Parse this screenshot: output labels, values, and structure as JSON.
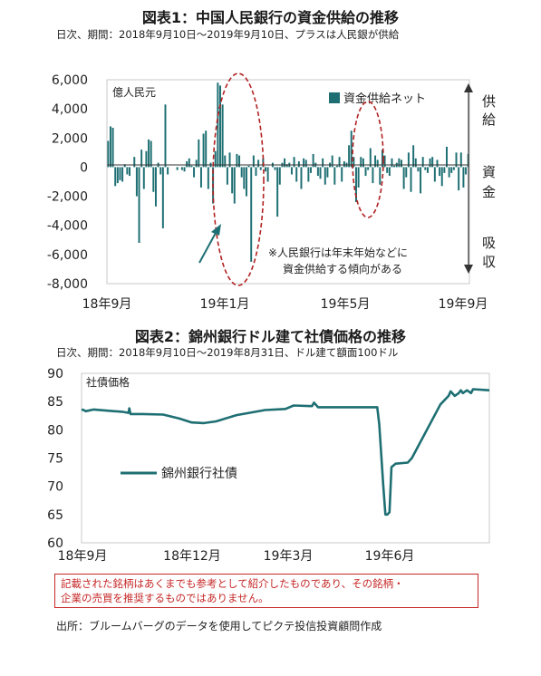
{
  "chart1": {
    "title": "図表1：中国人民銀行の資金供給の推移",
    "subtitle": "日次、期間：2018年9月10日～2019年9月10日、プラスは人民銀が供給",
    "unit_label": "億人民元",
    "legend": "資金供給ネット",
    "annotation": [
      "※人民銀行は年末年始などに",
      "資金供給する傾向がある"
    ],
    "side_label_supply": [
      "供",
      "給"
    ],
    "side_label_fund": [
      "資",
      "金"
    ],
    "side_label_absorb": [
      "吸",
      "収"
    ],
    "colors": {
      "bar": "#1e6f73",
      "highlight": "#b22222"
    }
  },
  "chart2": {
    "title": "図表2：錦州銀行ドル建て社債価格の推移",
    "subtitle": "日次、期間：2018年9月10日～2019年8月31日、ドル建て額面100ドル",
    "unit_label": "社債価格",
    "legend": "錦州銀行社債",
    "colors": {
      "line": "#1e6f73"
    }
  },
  "disclaimer": [
    "記載された銘柄はあくまでも参考として紹介したものであり、その銘柄・",
    "企業の売買を推奨するものではありません。"
  ],
  "source": "出所：ブルームバーグのデータを使用してピクテ投信投資顧問作成",
  "chart_data": [
    {
      "type": "bar",
      "title": "図表1：中国人民銀行の資金供給の推移",
      "ylabel": "億人民元",
      "ylim": [
        -8000,
        6000
      ],
      "yticks": [
        6000,
        4000,
        2000,
        0,
        -2000,
        -4000,
        -6000,
        -8000
      ],
      "xticks": [
        "18年9月",
        "19年1月",
        "19年5月",
        "19年9月"
      ],
      "series": [
        {
          "name": "資金供給ネット",
          "values": [
            1800,
            2800,
            2700,
            -1300,
            -1100,
            -900,
            -1000,
            200,
            -500,
            -600,
            0,
            700,
            -2000,
            -5200,
            1200,
            -1500,
            1100,
            1900,
            1800,
            -1700,
            -2700,
            300,
            -500,
            -4200,
            4300,
            -500,
            0,
            0,
            0,
            -200,
            0,
            -200,
            -300,
            400,
            600,
            100,
            -700,
            500,
            1900,
            -1400,
            2300,
            2500,
            -1500,
            300,
            -2500,
            1100,
            5800,
            5600,
            4300,
            800,
            -1200,
            1000,
            -1800,
            -2500,
            900,
            800,
            -700,
            -1500,
            -2000,
            100,
            -6500,
            800,
            -600,
            500,
            -200,
            600,
            -300,
            -1000,
            0,
            300,
            -200,
            -3400,
            -1200,
            300,
            600,
            200,
            300,
            -500,
            700,
            -1000,
            400,
            -1500,
            600,
            500,
            -1000,
            -400,
            900,
            300,
            -600,
            -800,
            600,
            -1200,
            -700,
            300,
            800,
            -1200,
            100,
            700,
            -1000,
            400,
            300,
            1500,
            2500,
            700,
            -2400,
            -1400,
            700,
            600,
            -600,
            -200,
            1300,
            -1100,
            800,
            500,
            -1200,
            1200,
            800,
            -400,
            -600,
            600,
            100,
            300,
            600,
            500,
            -1500,
            -700,
            1000,
            -1700,
            1500,
            600,
            -300,
            -1800,
            700,
            -200,
            -400,
            600,
            700,
            -1000,
            500,
            -600,
            -1300,
            -400,
            1400,
            -700,
            -400,
            -200,
            1000,
            -1600,
            1000,
            -1400,
            -500,
            900
          ]
        }
      ]
    },
    {
      "type": "line",
      "title": "図表2：錦州銀行ドル建て社債価格の推移",
      "ylabel": "社債価格",
      "ylim": [
        60,
        90
      ],
      "yticks": [
        90,
        85,
        80,
        75,
        70,
        65,
        60
      ],
      "xticks": [
        "18年9月",
        "18年12月",
        "19年3月",
        "19年6月"
      ],
      "x": [
        0,
        0.005,
        0.01,
        0.03,
        0.06,
        0.1,
        0.115,
        0.117,
        0.12,
        0.15,
        0.2,
        0.24,
        0.27,
        0.3,
        0.33,
        0.38,
        0.45,
        0.5,
        0.52,
        0.565,
        0.57,
        0.58,
        0.7,
        0.725,
        0.73,
        0.74,
        0.745,
        0.75,
        0.755,
        0.76,
        0.77,
        0.8,
        0.81,
        0.88,
        0.9,
        0.905,
        0.915,
        0.925,
        0.93,
        0.935,
        0.945,
        0.955,
        0.96,
        1.0
      ],
      "series": [
        {
          "name": "錦州銀行社債",
          "values": [
            83.6,
            83.5,
            83.3,
            83.6,
            83.4,
            83.2,
            83.0,
            83.8,
            82.8,
            82.8,
            82.7,
            82.0,
            81.3,
            81.2,
            81.5,
            82.6,
            83.5,
            83.7,
            84.3,
            84.2,
            84.8,
            84.0,
            84.0,
            84.0,
            81.0,
            70.0,
            65.0,
            65.0,
            65.4,
            73.4,
            74.0,
            74.2,
            75.0,
            84.5,
            86.0,
            86.8,
            86.0,
            86.5,
            87.0,
            86.5,
            87.0,
            86.5,
            87.2,
            87.0
          ]
        }
      ]
    }
  ]
}
